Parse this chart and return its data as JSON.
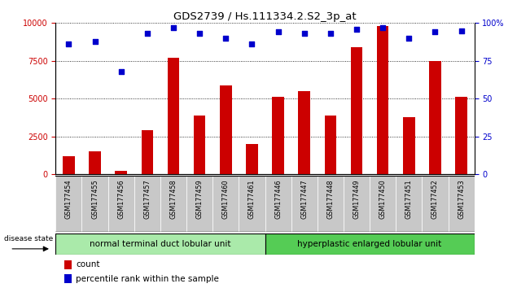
{
  "title": "GDS2739 / Hs.111334.2.S2_3p_at",
  "categories": [
    "GSM177454",
    "GSM177455",
    "GSM177456",
    "GSM177457",
    "GSM177458",
    "GSM177459",
    "GSM177460",
    "GSM177461",
    "GSM177446",
    "GSM177447",
    "GSM177448",
    "GSM177449",
    "GSM177450",
    "GSM177451",
    "GSM177452",
    "GSM177453"
  ],
  "bar_values": [
    1200,
    1500,
    200,
    2900,
    7700,
    3900,
    5900,
    2000,
    5100,
    5500,
    3900,
    8400,
    9800,
    3800,
    7500,
    5100
  ],
  "scatter_values": [
    86,
    88,
    68,
    93,
    97,
    93,
    90,
    86,
    94,
    93,
    93,
    96,
    97,
    90,
    94,
    95
  ],
  "bar_color": "#cc0000",
  "scatter_color": "#0000cc",
  "ylim_left": [
    0,
    10000
  ],
  "ylim_right": [
    0,
    100
  ],
  "yticks_left": [
    0,
    2500,
    5000,
    7500,
    10000
  ],
  "yticks_right": [
    0,
    25,
    50,
    75,
    100
  ],
  "yticklabels_right": [
    "0",
    "25",
    "50",
    "75",
    "100%"
  ],
  "group1_label": "normal terminal duct lobular unit",
  "group2_label": "hyperplastic enlarged lobular unit",
  "group1_count": 8,
  "disease_state_label": "disease state",
  "legend_bar": "count",
  "legend_scatter": "percentile rank within the sample",
  "bar_color_legend": "#cc0000",
  "scatter_color_legend": "#0000cc",
  "xticklabel_bg": "#c8c8c8",
  "group_bg1": "#aaeaaa",
  "group_bg2": "#55cc55",
  "title_fontsize": 9.5,
  "axis_fontsize": 7,
  "tick_fontsize": 7,
  "legend_fontsize": 7.5
}
